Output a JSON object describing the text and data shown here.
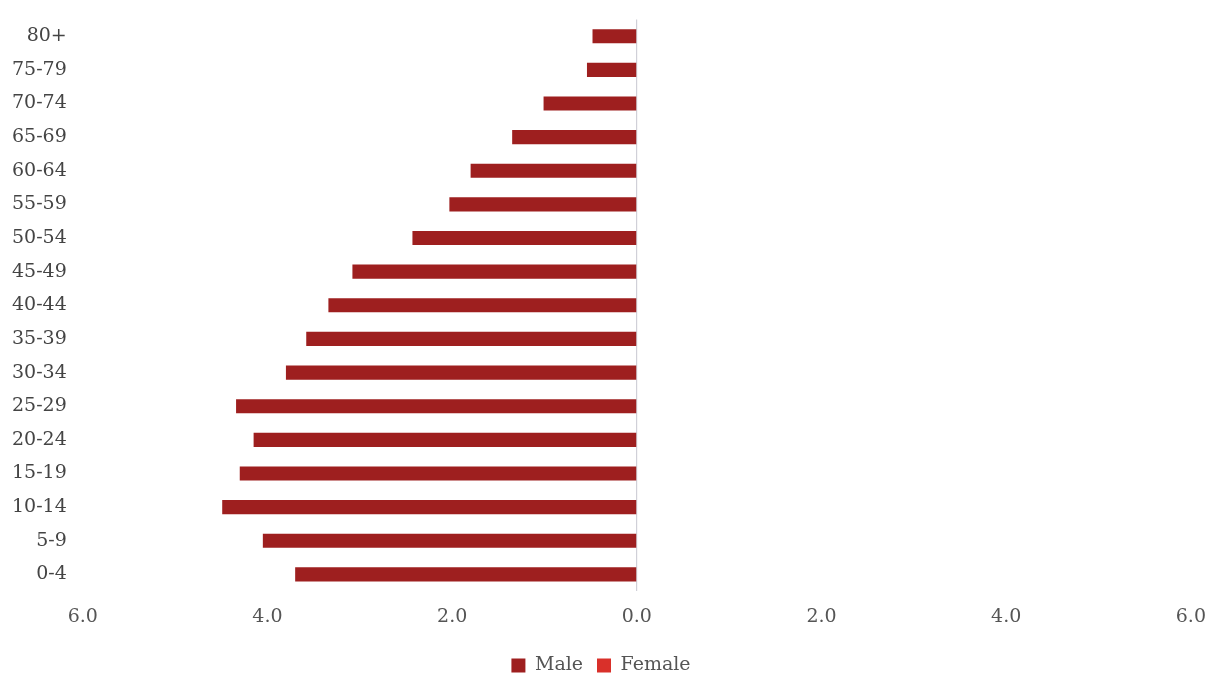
{
  "chart_data": {
    "type": "bar",
    "orientation": "horizontal",
    "stacked": true,
    "categories": [
      "80+",
      "75-79",
      "70-74",
      "65-69",
      "60-64",
      "55-59",
      "50-54",
      "45-49",
      "40-44",
      "35-39",
      "30-34",
      "25-29",
      "20-24",
      "15-19",
      "10-14",
      "5-9",
      "0-4"
    ],
    "series": [
      {
        "name": "Male",
        "color": "#9e1f1f",
        "values": [
          -0.48,
          -0.54,
          -1.01,
          -1.35,
          -1.8,
          -2.03,
          -2.43,
          -3.08,
          -3.34,
          -3.58,
          -3.8,
          -4.34,
          -4.15,
          -4.3,
          -4.49,
          -4.05,
          -3.7
        ]
      },
      {
        "name": "Female",
        "color": "#d9302a",
        "values": [
          null,
          null,
          null,
          null,
          null,
          null,
          null,
          null,
          null,
          null,
          null,
          null,
          null,
          null,
          null,
          null,
          null
        ]
      }
    ],
    "xlim": [
      -6,
      6
    ],
    "xticks": [
      {
        "value": -6,
        "label": "6.0"
      },
      {
        "value": -4,
        "label": "4.0"
      },
      {
        "value": -2,
        "label": "2.0"
      },
      {
        "value": 0,
        "label": "0.0"
      },
      {
        "value": 2,
        "label": "2.0"
      },
      {
        "value": 4,
        "label": "4.0"
      },
      {
        "value": 6,
        "label": "6.0"
      }
    ],
    "legend": "bottom"
  }
}
